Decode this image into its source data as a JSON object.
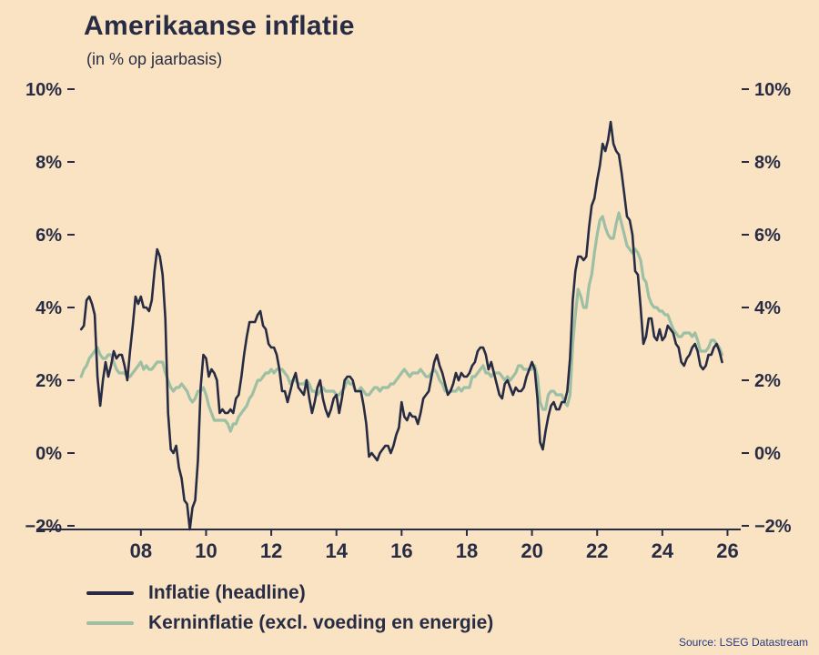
{
  "title": "Amerikaanse inflatie",
  "subtitle": "(in % op jaarbasis)",
  "source": "Source: LSEG Datastream",
  "colors": {
    "background": "#fae3c2",
    "ink": "#272c44",
    "headline_line": "#272c44",
    "core_line": "#9dbfa4",
    "source_text": "#233a80"
  },
  "legend": [
    {
      "label": "Inflatie (headline)",
      "color": "#272c44"
    },
    {
      "label": "Kerninflatie (excl. voeding en energie)",
      "color": "#9dbfa4"
    }
  ],
  "chart_data": {
    "type": "line",
    "title": "Amerikaanse inflatie",
    "subtitle": "(in % op jaarbasis)",
    "xlabel": "",
    "ylabel": "",
    "x_unit": "year",
    "frequency": "monthly",
    "x_start": 2006.1667,
    "x_step": 0.0833333,
    "xlim": [
      2006.05,
      2026.35
    ],
    "ylim": [
      -2.1,
      10.2
    ],
    "grid": false,
    "legend_position": "bottom-left",
    "axis_color": "#272c44",
    "xticks": [
      {
        "value": 2008,
        "label": "08"
      },
      {
        "value": 2010,
        "label": "10"
      },
      {
        "value": 2012,
        "label": "12"
      },
      {
        "value": 2014,
        "label": "14"
      },
      {
        "value": 2016,
        "label": "16"
      },
      {
        "value": 2018,
        "label": "18"
      },
      {
        "value": 2020,
        "label": "20"
      },
      {
        "value": 2022,
        "label": "22"
      },
      {
        "value": 2024,
        "label": "24"
      },
      {
        "value": 2026,
        "label": "26"
      }
    ],
    "yticks": [
      {
        "value": 10,
        "label": "10%"
      },
      {
        "value": 8,
        "label": "8%"
      },
      {
        "value": 6,
        "label": "6%"
      },
      {
        "value": 4,
        "label": "4%"
      },
      {
        "value": 2,
        "label": "2%"
      },
      {
        "value": 0,
        "label": "0%"
      },
      {
        "value": -2,
        "label": "−2%"
      }
    ],
    "series": [
      {
        "key": "headline",
        "name": "Inflatie (headline)",
        "color": "#272c44",
        "stroke_width": 2.6,
        "values": [
          3.4,
          3.5,
          4.2,
          4.3,
          4.1,
          3.8,
          2.1,
          1.3,
          2.0,
          2.5,
          2.1,
          2.4,
          2.8,
          2.6,
          2.7,
          2.7,
          2.4,
          2.0,
          2.8,
          3.5,
          4.3,
          4.1,
          4.3,
          4.0,
          4.0,
          3.9,
          4.2,
          5.0,
          5.6,
          5.4,
          4.9,
          3.7,
          1.1,
          0.1,
          0.0,
          0.2,
          -0.4,
          -0.7,
          -1.3,
          -1.4,
          -2.1,
          -1.5,
          -1.3,
          -0.2,
          1.8,
          2.7,
          2.6,
          2.1,
          2.3,
          2.2,
          2.0,
          1.1,
          1.2,
          1.1,
          1.1,
          1.2,
          1.1,
          1.5,
          1.6,
          2.1,
          2.7,
          3.2,
          3.6,
          3.6,
          3.6,
          3.8,
          3.9,
          3.5,
          3.4,
          3.0,
          2.9,
          2.9,
          2.7,
          2.3,
          1.7,
          1.7,
          1.4,
          1.7,
          2.0,
          2.2,
          1.8,
          1.7,
          1.6,
          2.0,
          1.5,
          1.1,
          1.4,
          1.8,
          2.0,
          1.5,
          1.2,
          1.0,
          1.2,
          1.5,
          1.6,
          1.1,
          1.5,
          2.0,
          2.1,
          2.1,
          2.0,
          1.7,
          1.7,
          1.7,
          1.3,
          0.8,
          -0.1,
          0.0,
          -0.1,
          -0.2,
          0.0,
          0.1,
          0.2,
          0.2,
          0.0,
          0.2,
          0.5,
          0.7,
          1.4,
          1.0,
          0.9,
          1.1,
          1.0,
          1.0,
          0.8,
          1.1,
          1.5,
          1.6,
          1.7,
          2.1,
          2.5,
          2.7,
          2.4,
          2.2,
          1.9,
          1.6,
          1.7,
          1.9,
          2.2,
          2.0,
          2.2,
          2.1,
          2.1,
          2.2,
          2.4,
          2.5,
          2.8,
          2.9,
          2.9,
          2.7,
          2.3,
          2.5,
          2.2,
          1.9,
          1.6,
          1.5,
          1.9,
          2.0,
          1.8,
          1.6,
          1.8,
          1.7,
          1.7,
          1.8,
          2.1,
          2.3,
          2.5,
          2.3,
          1.5,
          0.3,
          0.1,
          0.6,
          1.0,
          1.3,
          1.4,
          1.2,
          1.2,
          1.4,
          1.4,
          1.7,
          2.6,
          4.2,
          5.0,
          5.4,
          5.4,
          5.3,
          5.4,
          6.2,
          6.8,
          7.0,
          7.5,
          7.9,
          8.5,
          8.3,
          8.6,
          9.1,
          8.5,
          8.3,
          8.2,
          7.7,
          7.1,
          6.5,
          6.4,
          6.0,
          5.0,
          4.9,
          4.0,
          3.0,
          3.2,
          3.7,
          3.7,
          3.2,
          3.1,
          3.4,
          3.1,
          3.2,
          3.5,
          3.4,
          3.3,
          3.0,
          2.9,
          2.5,
          2.4,
          2.6,
          2.7,
          2.9,
          3.0,
          2.8,
          2.4,
          2.3,
          2.4,
          2.7,
          2.7,
          2.9,
          3.0,
          2.8,
          2.5
        ]
      },
      {
        "key": "core",
        "name": "Kerninflatie (excl. voeding en energie)",
        "color": "#9dbfa4",
        "stroke_width": 3.2,
        "values": [
          2.1,
          2.3,
          2.4,
          2.6,
          2.7,
          2.8,
          2.9,
          2.7,
          2.6,
          2.6,
          2.7,
          2.7,
          2.5,
          2.3,
          2.2,
          2.2,
          2.2,
          2.1,
          2.1,
          2.2,
          2.3,
          2.4,
          2.5,
          2.3,
          2.4,
          2.3,
          2.3,
          2.4,
          2.5,
          2.5,
          2.5,
          2.2,
          2.0,
          1.8,
          1.7,
          1.8,
          1.8,
          1.9,
          1.8,
          1.7,
          1.5,
          1.4,
          1.5,
          1.7,
          1.7,
          1.8,
          1.6,
          1.3,
          1.1,
          0.9,
          0.9,
          0.9,
          0.9,
          0.9,
          0.8,
          0.6,
          0.8,
          0.8,
          1.0,
          1.1,
          1.2,
          1.3,
          1.5,
          1.6,
          1.8,
          2.0,
          2.0,
          2.1,
          2.2,
          2.2,
          2.3,
          2.2,
          2.3,
          2.3,
          2.3,
          2.2,
          2.1,
          1.9,
          2.0,
          2.0,
          1.9,
          1.9,
          1.9,
          2.0,
          1.9,
          1.7,
          1.7,
          1.6,
          1.7,
          1.8,
          1.7,
          1.7,
          1.7,
          1.7,
          1.6,
          1.6,
          1.7,
          1.8,
          2.0,
          1.9,
          1.9,
          1.7,
          1.7,
          1.8,
          1.7,
          1.6,
          1.6,
          1.7,
          1.8,
          1.8,
          1.7,
          1.8,
          1.8,
          1.8,
          1.9,
          1.9,
          2.0,
          2.1,
          2.2,
          2.3,
          2.2,
          2.1,
          2.2,
          2.2,
          2.2,
          2.3,
          2.2,
          2.1,
          2.1,
          2.2,
          2.3,
          2.2,
          2.0,
          1.9,
          1.7,
          1.7,
          1.7,
          1.7,
          1.7,
          1.8,
          1.7,
          1.8,
          1.8,
          1.8,
          2.1,
          2.1,
          2.2,
          2.3,
          2.4,
          2.2,
          2.2,
          2.1,
          2.2,
          2.2,
          2.2,
          2.1,
          2.0,
          2.1,
          2.0,
          2.1,
          2.2,
          2.4,
          2.4,
          2.3,
          2.3,
          2.3,
          2.3,
          2.4,
          2.1,
          1.4,
          1.2,
          1.2,
          1.6,
          1.7,
          1.7,
          1.6,
          1.6,
          1.6,
          1.4,
          1.3,
          1.6,
          3.0,
          3.8,
          4.5,
          4.3,
          4.0,
          4.0,
          4.6,
          4.9,
          5.5,
          6.0,
          6.4,
          6.5,
          6.2,
          6.0,
          5.9,
          5.9,
          6.3,
          6.6,
          6.3,
          6.0,
          5.7,
          5.6,
          5.5,
          5.6,
          5.5,
          5.3,
          4.8,
          4.7,
          4.3,
          4.1,
          4.0,
          4.0,
          3.9,
          3.9,
          3.8,
          3.8,
          3.6,
          3.4,
          3.3,
          3.2,
          3.2,
          3.3,
          3.3,
          3.3,
          3.2,
          3.3,
          3.1,
          2.8,
          2.8,
          2.8,
          2.9,
          3.1,
          3.1,
          3.0,
          2.9,
          2.7
        ]
      }
    ]
  }
}
